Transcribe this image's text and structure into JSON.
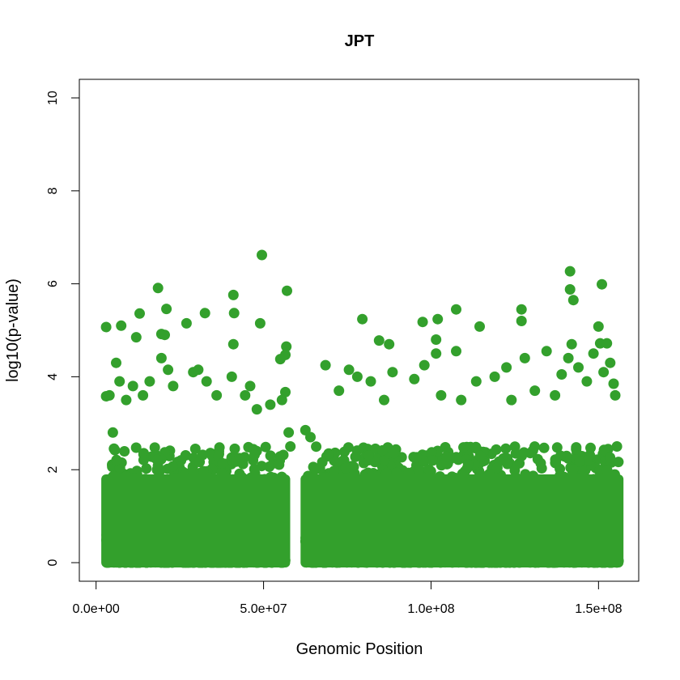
{
  "chart_data": {
    "type": "scatter",
    "title": "JPT",
    "xlabel": "Genomic Position",
    "ylabel": "log10(p-value)",
    "xlim": [
      -5000000,
      162000000
    ],
    "ylim": [
      -0.4,
      10.4
    ],
    "x_ticks": [
      0,
      50000000,
      100000000,
      150000000
    ],
    "x_tick_labels": [
      "0.0e+00",
      "5.0e+07",
      "1.0e+08",
      "1.5e+08"
    ],
    "y_ticks": [
      0,
      2,
      4,
      6,
      8,
      10
    ],
    "y_tick_labels": [
      "0",
      "2",
      "4",
      "6",
      "8",
      "10"
    ],
    "color": "#33a02c",
    "grid": false,
    "legend": "none",
    "dense_region_note": "Dense points spanning ~3e6–5.6e7 and ~6.2e7–1.56e8 with values 0 to ~2.5",
    "series": [
      {
        "points": [
          [
            3000000,
            5.07
          ],
          [
            7500000,
            5.1
          ],
          [
            12000000,
            4.85
          ],
          [
            13000000,
            5.36
          ],
          [
            18500000,
            5.91
          ],
          [
            19500000,
            4.92
          ],
          [
            20500000,
            4.9
          ],
          [
            21000000,
            5.46
          ],
          [
            27000000,
            5.15
          ],
          [
            32500000,
            5.37
          ],
          [
            41000000,
            5.76
          ],
          [
            41200000,
            5.37
          ],
          [
            49500000,
            6.62
          ],
          [
            49000000,
            5.15
          ],
          [
            57000000,
            5.85
          ],
          [
            55000000,
            4.38
          ],
          [
            56800000,
            4.65
          ],
          [
            56500000,
            4.47
          ],
          [
            56500000,
            3.67
          ],
          [
            41000000,
            4.7
          ],
          [
            79500000,
            5.24
          ],
          [
            97500000,
            5.18
          ],
          [
            102000000,
            5.24
          ],
          [
            107500000,
            5.45
          ],
          [
            114500000,
            5.08
          ],
          [
            101500000,
            4.8
          ],
          [
            107500000,
            4.55
          ],
          [
            127000000,
            5.45
          ],
          [
            127000000,
            5.2
          ],
          [
            141500000,
            6.27
          ],
          [
            141500000,
            5.88
          ],
          [
            142500000,
            5.65
          ],
          [
            151000000,
            5.99
          ],
          [
            150000000,
            5.08
          ],
          [
            84500000,
            4.78
          ],
          [
            87500000,
            4.7
          ],
          [
            134500000,
            4.55
          ],
          [
            142000000,
            4.7
          ],
          [
            150500000,
            4.72
          ],
          [
            152500000,
            4.72
          ],
          [
            3000000,
            3.58
          ],
          [
            4000000,
            3.6
          ],
          [
            6000000,
            4.3
          ],
          [
            7000000,
            3.9
          ],
          [
            9000000,
            3.5
          ],
          [
            11000000,
            3.8
          ],
          [
            14000000,
            3.6
          ],
          [
            16000000,
            3.9
          ],
          [
            19500000,
            4.4
          ],
          [
            21500000,
            4.15
          ],
          [
            23000000,
            3.8
          ],
          [
            29000000,
            4.1
          ],
          [
            30500000,
            4.15
          ],
          [
            33000000,
            3.9
          ],
          [
            36000000,
            3.6
          ],
          [
            40500000,
            4.0
          ],
          [
            44500000,
            3.6
          ],
          [
            46000000,
            3.8
          ],
          [
            48000000,
            3.3
          ],
          [
            52000000,
            3.4
          ],
          [
            55500000,
            3.5
          ],
          [
            68500000,
            4.25
          ],
          [
            72500000,
            3.7
          ],
          [
            75500000,
            4.15
          ],
          [
            78000000,
            4.0
          ],
          [
            82000000,
            3.9
          ],
          [
            86000000,
            3.5
          ],
          [
            88500000,
            4.1
          ],
          [
            95000000,
            3.95
          ],
          [
            98000000,
            4.25
          ],
          [
            101500000,
            4.5
          ],
          [
            103000000,
            3.6
          ],
          [
            109000000,
            3.5
          ],
          [
            113500000,
            3.9
          ],
          [
            119000000,
            4.0
          ],
          [
            122500000,
            4.2
          ],
          [
            124000000,
            3.5
          ],
          [
            128000000,
            4.4
          ],
          [
            131000000,
            3.7
          ],
          [
            137000000,
            3.6
          ],
          [
            139000000,
            4.05
          ],
          [
            141000000,
            4.4
          ],
          [
            144000000,
            4.2
          ],
          [
            146500000,
            3.9
          ],
          [
            148500000,
            4.5
          ],
          [
            151500000,
            4.1
          ],
          [
            153500000,
            4.3
          ],
          [
            154500000,
            3.85
          ],
          [
            155000000,
            3.6
          ],
          [
            5000000,
            2.8
          ],
          [
            62500000,
            2.85
          ],
          [
            64000000,
            2.7
          ],
          [
            58000000,
            2.5
          ],
          [
            57500000,
            2.8
          ],
          [
            155500000,
            2.5
          ]
        ]
      }
    ]
  }
}
